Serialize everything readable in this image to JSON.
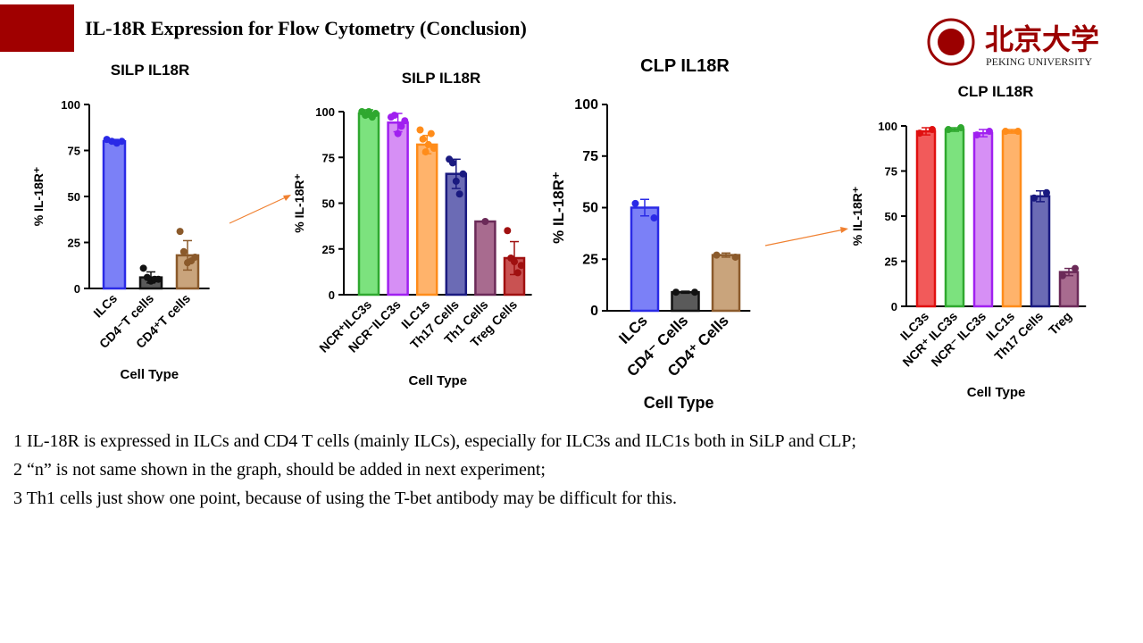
{
  "header": {
    "title": "IL-18R Expression  for Flow Cytometry (Conclusion)"
  },
  "logo": {
    "name": "北京大学",
    "subtitle": "PEKING UNIVERSITY"
  },
  "notes": [
    "1 IL-18R is expressed in ILCs and CD4 T cells (mainly ILCs), especially for ILC3s and ILC1s both in SiLP and CLP;",
    "2 “n” is not same shown in the graph, should be added  in next experiment;",
    "3 Th1 cells just show one point, because of using the T-bet antibody may be difficult for this."
  ],
  "chart_data": [
    {
      "type": "bar",
      "title": "SILP IL18R",
      "xlabel": "Cell Type",
      "ylabel": "% IL-18R⁺",
      "categories": [
        "ILCs",
        "CD4⁻T cells",
        "CD4⁺T cells"
      ],
      "values": [
        80,
        6,
        18
      ],
      "errors": [
        1,
        3,
        8
      ],
      "points": [
        [
          81,
          80,
          79,
          80
        ],
        [
          11,
          6,
          4,
          5,
          5
        ],
        [
          31,
          20,
          14,
          15,
          17
        ]
      ],
      "colors": [
        "#7b80f7",
        "#5a5a5a",
        "#c9a47c"
      ],
      "edge_colors": [
        "#2a2ae6",
        "#111111",
        "#8b5a2b"
      ],
      "ylim": [
        0,
        100
      ],
      "yticks": [
        0,
        25,
        50,
        75,
        100
      ]
    },
    {
      "type": "bar",
      "title": "SILP IL18R",
      "xlabel": "Cell Type",
      "ylabel": "% IL-18R⁺",
      "categories": [
        "NCR⁺ILC3s",
        "NCR⁻ILC3s",
        "ILC1s",
        "Th17 Cells",
        "Th1 Cells",
        "Treg Cells"
      ],
      "values": [
        99,
        94,
        82,
        66,
        40,
        20
      ],
      "errors": [
        2,
        5,
        5,
        8,
        0,
        9
      ],
      "points": [
        [
          100,
          98,
          100,
          97,
          99
        ],
        [
          97,
          98,
          88,
          92,
          95
        ],
        [
          90,
          85,
          78,
          82,
          88,
          80
        ],
        [
          74,
          72,
          62,
          55,
          66
        ],
        [
          40
        ],
        [
          35,
          20,
          18,
          12,
          16
        ]
      ],
      "colors": [
        "#7ce27e",
        "#d68ff5",
        "#ffb36b",
        "#6b6bb5",
        "#a86b8f",
        "#c95252"
      ],
      "edge_colors": [
        "#2fa82f",
        "#a020f0",
        "#ff8c1a",
        "#1a1a80",
        "#6b2a58",
        "#a01010"
      ],
      "ylim": [
        0,
        100
      ],
      "yticks": [
        0,
        25,
        50,
        75,
        100
      ]
    },
    {
      "type": "bar",
      "title": "CLP IL18R",
      "xlabel": "Cell Type",
      "ylabel": "% IL-18R⁺",
      "categories": [
        "ILCs",
        "CD4⁻ Cells",
        "CD4⁺ Cells"
      ],
      "values": [
        50,
        9,
        27
      ],
      "errors": [
        4,
        0.5,
        1
      ],
      "points": [
        [
          52,
          45
        ],
        [
          9,
          9
        ],
        [
          27,
          26
        ]
      ],
      "colors": [
        "#7b80f7",
        "#5a5a5a",
        "#c9a47c"
      ],
      "edge_colors": [
        "#2a2ae6",
        "#111111",
        "#8b5a2b"
      ],
      "ylim": [
        0,
        100
      ],
      "yticks": [
        0,
        25,
        50,
        75,
        100
      ]
    },
    {
      "type": "bar",
      "title": "CLP IL18R",
      "xlabel": "Cell Type",
      "ylabel": "% IL-18R⁺",
      "categories": [
        "ILC3s",
        "NCR⁺ ILC3s",
        "NCR⁻ ILC3s",
        "ILC1s",
        "Th17 Cells",
        "Treg"
      ],
      "values": [
        97,
        98,
        96,
        97,
        61,
        19
      ],
      "errors": [
        2,
        1,
        2,
        1,
        3,
        2
      ],
      "points": [
        [
          96,
          98
        ],
        [
          98,
          99
        ],
        [
          95,
          97
        ],
        [
          97,
          97
        ],
        [
          60,
          63
        ],
        [
          17,
          21
        ]
      ],
      "colors": [
        "#f25a5a",
        "#7ce27e",
        "#d68ff5",
        "#ffb36b",
        "#6b6bb5",
        "#a86b8f"
      ],
      "edge_colors": [
        "#e01010",
        "#2fa82f",
        "#a020f0",
        "#ff8c1a",
        "#1a1a80",
        "#6b2a58"
      ],
      "ylim": [
        0,
        100
      ],
      "yticks": [
        0,
        25,
        50,
        75,
        100
      ]
    }
  ]
}
